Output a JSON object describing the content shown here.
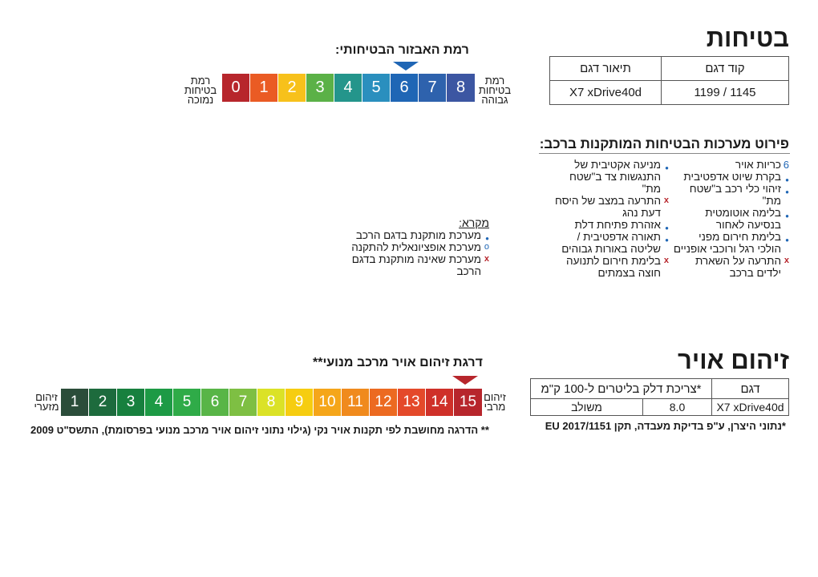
{
  "safety": {
    "title": "בטיחות",
    "table": {
      "headers": [
        "קוד דגם",
        "תיאור דגם"
      ],
      "row": [
        "1145 / 1199",
        "X7 xDrive40d"
      ]
    },
    "scale_title": "רמת האבזור הבטיחותי:",
    "label_low": "רמת\nבטיחות\nנמוכה",
    "label_high": "רמת\nבטיחות\nגבוהה",
    "cells": [
      {
        "num": "0",
        "color": "#b7262c"
      },
      {
        "num": "1",
        "color": "#ea5b24"
      },
      {
        "num": "2",
        "color": "#f7c11b"
      },
      {
        "num": "3",
        "color": "#5bb147"
      },
      {
        "num": "4",
        "color": "#24958b"
      },
      {
        "num": "5",
        "color": "#2a8fbe"
      },
      {
        "num": "6",
        "color": "#1f66b5"
      },
      {
        "num": "7",
        "color": "#2e62ad"
      },
      {
        "num": "8",
        "color": "#3c56a2"
      }
    ],
    "selected_level": 6
  },
  "systems": {
    "title": "פירוט מערכות הבטיחות המותקנות ברכב:",
    "col_right": [
      {
        "marker": "6",
        "text": "כריות אויר"
      },
      {
        "marker": "dot",
        "text": "בקרת שיוט אדפטיבית"
      },
      {
        "marker": "dot",
        "text": "זיהוי כלי רכב ב\"שטח מת\""
      },
      {
        "marker": "dot",
        "text": "בלימה אוטומטית בנסיעה לאחור"
      },
      {
        "marker": "dot",
        "text": "בלימת חירום מפני הולכי רגל ורוכבי אופניים"
      },
      {
        "marker": "x",
        "text": "התרעה על השארת ילדים ברכב"
      }
    ],
    "col_left": [
      {
        "marker": "dot",
        "text": "מניעה אקטיבית של התנגשות צד ב\"שטח מת\""
      },
      {
        "marker": "x",
        "text": "התרעה במצב של היסח דעת נהג"
      },
      {
        "marker": "dot",
        "text": "אזהרת פתיחת דלת"
      },
      {
        "marker": "dot",
        "text": "תאורה אדפטיבית / שליטה באורות גבוהים"
      },
      {
        "marker": "x",
        "text": "בלימת חירום לתנועה חוצה בצמתים"
      }
    ]
  },
  "legend": {
    "title": "מקרא:",
    "items": [
      {
        "marker": "dot",
        "text": "מערכת מותקנת בדגם הרכב"
      },
      {
        "marker": "o",
        "text": "מערכת אופציונאלית להתקנה"
      },
      {
        "marker": "x",
        "text": "מערכת שאינה מותקנת בדגם הרכב"
      }
    ]
  },
  "pollution": {
    "title": "זיהום אויר",
    "table": {
      "headers": [
        "דגם",
        "*צריכת דלק בליטרים ל-100 ק\"מ"
      ],
      "row_model": "X7 xDrive40d",
      "row_value": "8.0",
      "row_type": "משולב"
    },
    "footnote": "*נתוני היצרן, ע\"פ בדיקת מעבדה, תקן EU 2017/1151",
    "scale_title": "דרגת זיהום אויר מרכב מנועי**",
    "label_low": "זיהום\nמזערי",
    "label_high": "זיהום\nמרבי",
    "cells": [
      {
        "num": "1",
        "color": "#2b4d3a"
      },
      {
        "num": "2",
        "color": "#1d6b3d"
      },
      {
        "num": "3",
        "color": "#17803e"
      },
      {
        "num": "4",
        "color": "#1d9a45"
      },
      {
        "num": "5",
        "color": "#2fab48"
      },
      {
        "num": "6",
        "color": "#58b547"
      },
      {
        "num": "7",
        "color": "#7ebf43"
      },
      {
        "num": "8",
        "color": "#dbe227"
      },
      {
        "num": "9",
        "color": "#f6cd10"
      },
      {
        "num": "10",
        "color": "#f5a61a"
      },
      {
        "num": "11",
        "color": "#f08a1d"
      },
      {
        "num": "12",
        "color": "#ec6a21"
      },
      {
        "num": "13",
        "color": "#e4492a"
      },
      {
        "num": "14",
        "color": "#cf3029"
      },
      {
        "num": "15",
        "color": "#b7262c"
      }
    ],
    "selected_level": 15,
    "note": "** הדרגה מחושבת לפי תקנות אויר נקי (גילוי נתוני זיהום אויר מרכב מנועי בפרסומת), התשס\"ט 2009"
  }
}
